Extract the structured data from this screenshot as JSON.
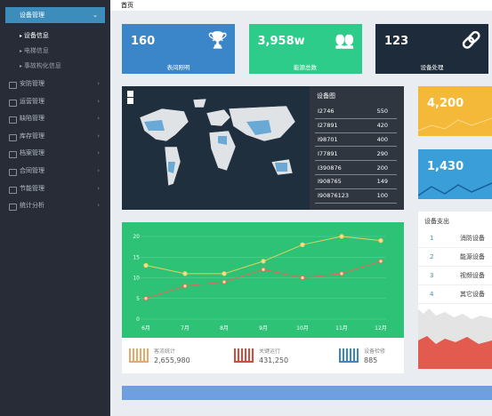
{
  "sidebar": {
    "active_group": "设备管理",
    "sub_items": [
      "设备信息",
      "电梯信息",
      "事故构化信息"
    ],
    "items": [
      "安防管理",
      "运营管理",
      "缺陷管理",
      "库存管理",
      "档案管理",
      "合同管理",
      "节能管理",
      "统计分析"
    ]
  },
  "header": {
    "breadcrumb": "首页"
  },
  "cards": [
    {
      "value": "160",
      "label": "表间照明"
    },
    {
      "value": "3,958w",
      "label": "能源总数"
    },
    {
      "value": "123",
      "label": "设备处理"
    }
  ],
  "map_panel": {
    "title": "设备图",
    "rows": [
      [
        "I2746",
        "550"
      ],
      [
        "I27891",
        "420"
      ],
      [
        "I98701",
        "400"
      ],
      [
        "I77891",
        "290"
      ],
      [
        "I390876",
        "200"
      ],
      [
        "I908765",
        "149"
      ],
      [
        "I90876123",
        "100"
      ]
    ]
  },
  "side_cards": [
    "4,200",
    "1,430"
  ],
  "expense": {
    "title": "设备支出",
    "rows": [
      [
        "1",
        "消防设备"
      ],
      [
        "2",
        "能源设备"
      ],
      [
        "3",
        "视频设备"
      ],
      [
        "4",
        "其它设备"
      ]
    ]
  },
  "chart_data": {
    "type": "line",
    "categories": [
      "6月",
      "7月",
      "8月",
      "9月",
      "10月",
      "11月",
      "12月"
    ],
    "series": [
      {
        "color": "#e8d05a",
        "values": [
          13,
          11,
          11,
          14,
          18,
          20,
          19
        ]
      },
      {
        "color": "#e0685a",
        "values": [
          5,
          8,
          9,
          12,
          10,
          11,
          14
        ]
      }
    ],
    "ylim": [
      0,
      20
    ],
    "yticks": [
      0,
      5,
      10,
      15,
      20
    ],
    "grid": true
  },
  "stats": [
    {
      "label": "客流统计",
      "value": "2,655,980"
    },
    {
      "label": "关键运行",
      "value": "431,250"
    },
    {
      "label": "设备检修",
      "value": "885"
    }
  ]
}
